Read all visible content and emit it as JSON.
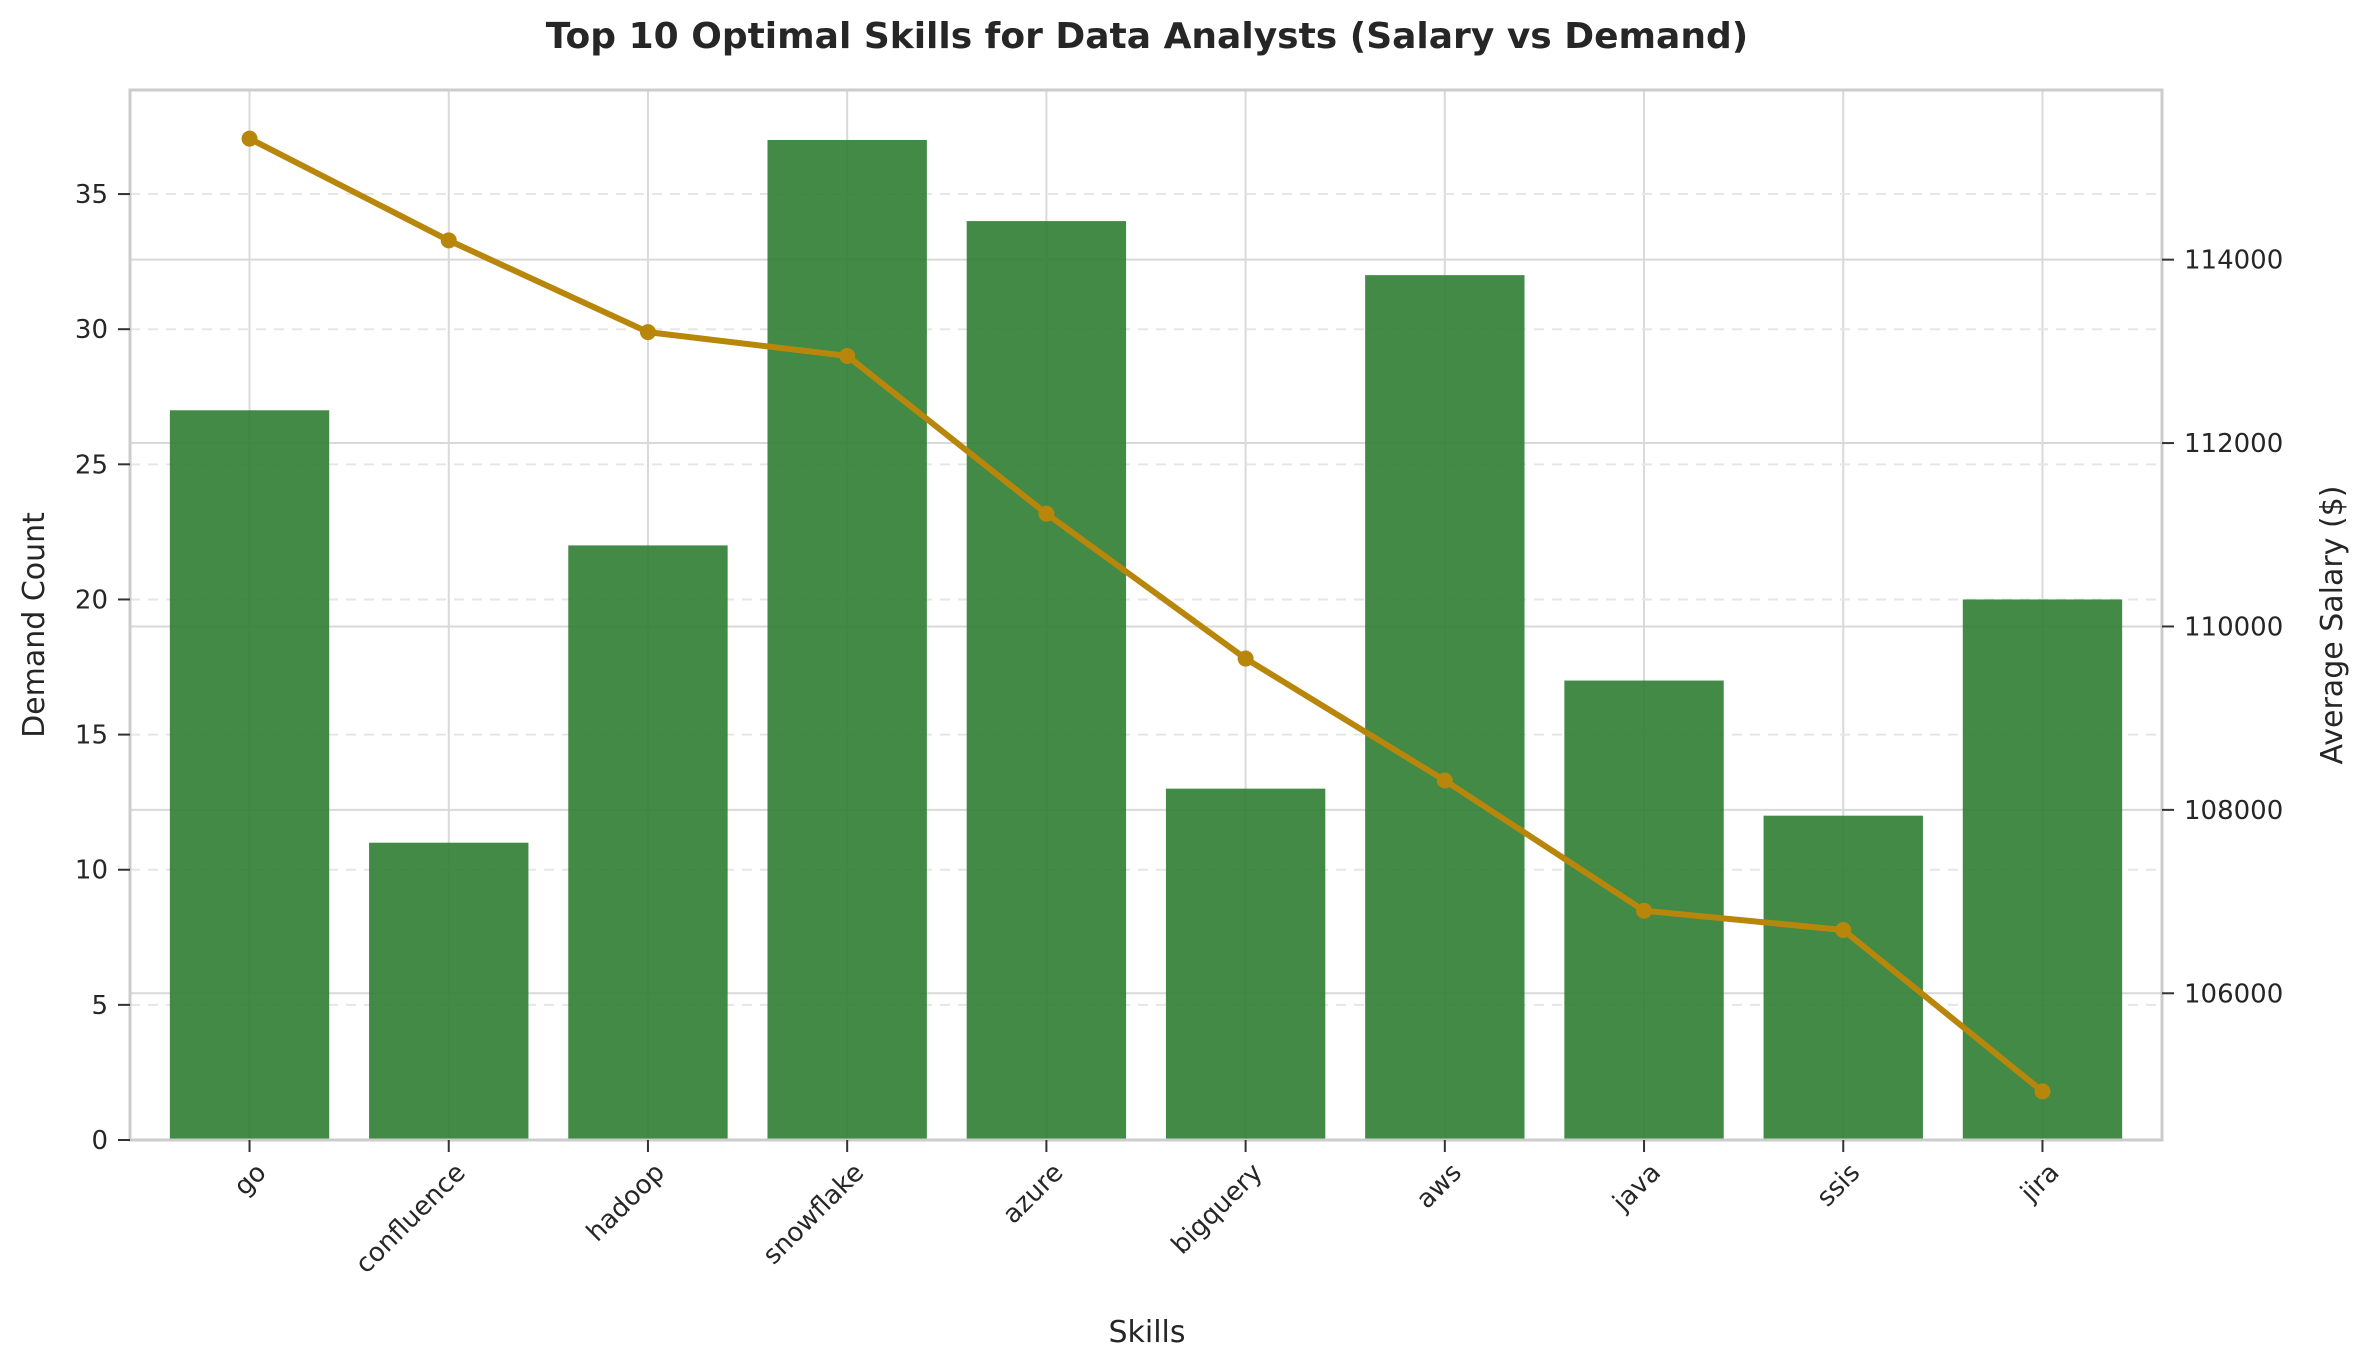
{
  "chart_data": {
    "type": "bar",
    "title": "Top 10 Optimal Skills for Data Analysts (Salary vs Demand)",
    "xlabel": "Skills",
    "ylabel": "Demand Count",
    "y2label": "Average Salary ($)",
    "categories": [
      "go",
      "confluence",
      "hadoop",
      "snowflake",
      "azure",
      "bigquery",
      "aws",
      "java",
      "ssis",
      "jira"
    ],
    "series": [
      {
        "type": "bar",
        "axis": "left",
        "color": "#2e7d32",
        "values": [
          27,
          11,
          22,
          37,
          34,
          13,
          32,
          17,
          12,
          20
        ]
      },
      {
        "type": "line",
        "axis": "right",
        "color": "#b8860b",
        "values": [
          115320,
          114210,
          113210,
          112950,
          111230,
          109650,
          108320,
          106900,
          106690,
          104930
        ]
      }
    ],
    "ylim": [
      0,
      38.85
    ],
    "y2lim": [
      104400,
      115850
    ],
    "yticks": [
      0,
      5,
      10,
      15,
      20,
      25,
      30,
      35
    ],
    "y2ticks": [
      106000,
      108000,
      110000,
      112000,
      114000
    ],
    "grid": true
  }
}
